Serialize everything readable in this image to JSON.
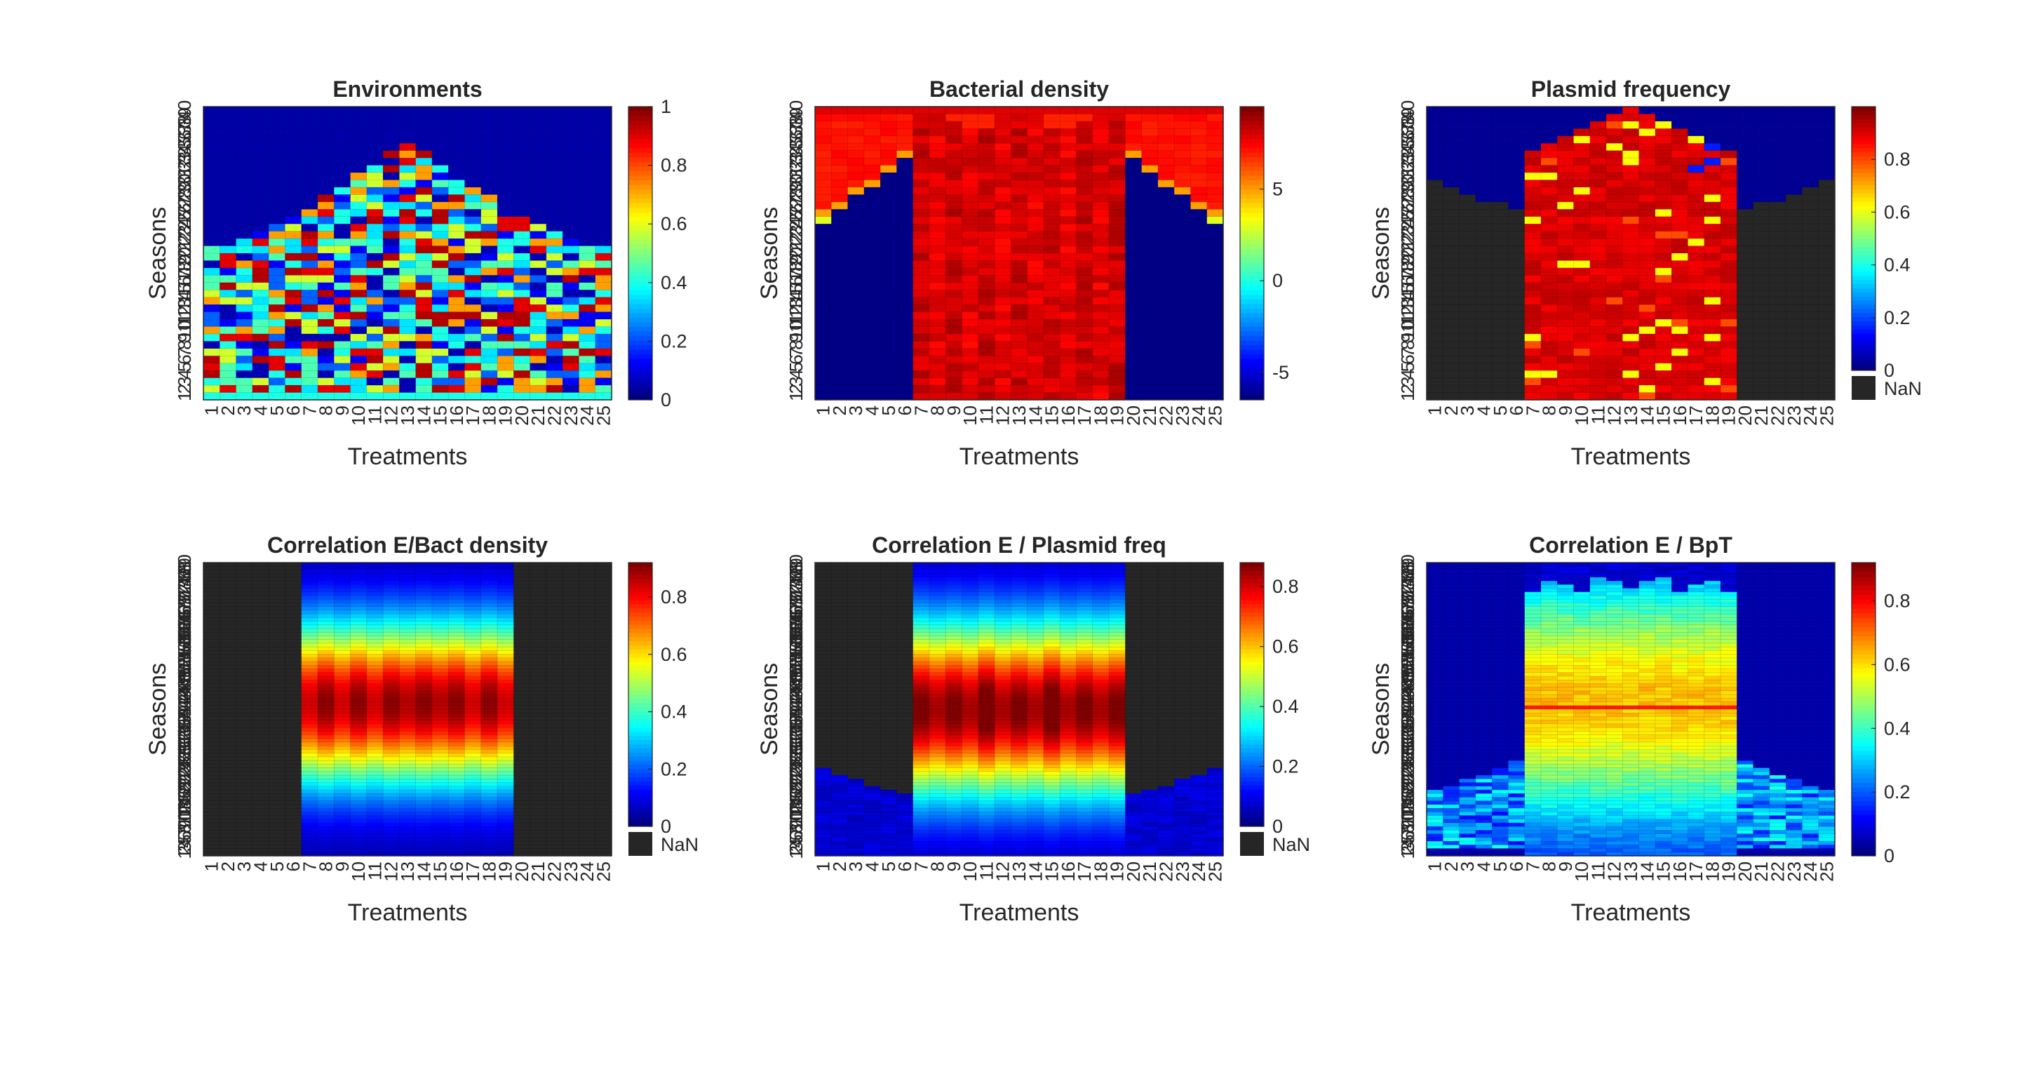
{
  "figure": {
    "treatments": [
      "1",
      "2",
      "3",
      "4",
      "5",
      "6",
      "7",
      "8",
      "9",
      "10",
      "11",
      "12",
      "13",
      "14",
      "15",
      "16",
      "17",
      "18",
      "19",
      "20",
      "21",
      "22",
      "23",
      "24",
      "25"
    ],
    "nan_label": "NaN",
    "colormap": "jet",
    "nan_color": "#262626"
  },
  "chart_data": [
    {
      "type": "heatmap",
      "title": "Environments",
      "xlabel": "Treatments",
      "ylabel": "Seasons",
      "rows": 40,
      "columns": 25,
      "pattern": "environments",
      "clim": [
        0,
        1
      ],
      "colorbar_ticks": [
        0,
        0.2,
        0.4,
        0.6,
        0.8,
        1
      ],
      "colorbar_tick_labels": [
        "0",
        "0.2",
        "0.4",
        "0.6",
        "0.8",
        "1"
      ],
      "has_nan": false
    },
    {
      "type": "heatmap",
      "title": "Bacterial density",
      "xlabel": "Treatments",
      "ylabel": "Seasons",
      "rows": 40,
      "columns": 25,
      "pattern": "density",
      "clim": [
        -6.5,
        9.5
      ],
      "colorbar_ticks": [
        -5,
        0,
        5
      ],
      "colorbar_tick_labels": [
        "-5",
        "0",
        "5"
      ],
      "has_nan": false
    },
    {
      "type": "heatmap",
      "title": "Plasmid frequency",
      "xlabel": "Treatments",
      "ylabel": "Seasons",
      "rows": 40,
      "columns": 25,
      "pattern": "plasmid",
      "clim": [
        0,
        1
      ],
      "colorbar_ticks": [
        0,
        0.2,
        0.4,
        0.6,
        0.8
      ],
      "colorbar_tick_labels": [
        "0",
        "0.2",
        "0.4",
        "0.6",
        "0.8"
      ],
      "has_nan": true
    },
    {
      "type": "heatmap",
      "title": "Correlation E/Bact density",
      "xlabel": "Treatments",
      "ylabel": "Seasons",
      "rows": 80,
      "columns": 25,
      "pattern": "corr_density",
      "clim": [
        0,
        0.92
      ],
      "colorbar_ticks": [
        0,
        0.2,
        0.4,
        0.6,
        0.8
      ],
      "colorbar_tick_labels": [
        "0",
        "0.2",
        "0.4",
        "0.6",
        "0.8"
      ],
      "has_nan": true
    },
    {
      "type": "heatmap",
      "title": "Correlation E / Plasmid freq",
      "xlabel": "Treatments",
      "ylabel": "Seasons",
      "rows": 80,
      "columns": 25,
      "pattern": "corr_plasmid",
      "clim": [
        0,
        0.88
      ],
      "colorbar_ticks": [
        0,
        0.2,
        0.4,
        0.6,
        0.8
      ],
      "colorbar_tick_labels": [
        "0",
        "0.2",
        "0.4",
        "0.6",
        "0.8"
      ],
      "has_nan": true
    },
    {
      "type": "heatmap",
      "title": "Correlation E / BpT",
      "xlabel": "Treatments",
      "ylabel": "Seasons",
      "rows": 80,
      "columns": 25,
      "pattern": "corr_bpt",
      "clim": [
        0,
        0.92
      ],
      "colorbar_ticks": [
        0,
        0.2,
        0.4,
        0.6,
        0.8
      ],
      "colorbar_tick_labels": [
        "0",
        "0.2",
        "0.4",
        "0.6",
        "0.8"
      ],
      "has_nan": false
    }
  ]
}
